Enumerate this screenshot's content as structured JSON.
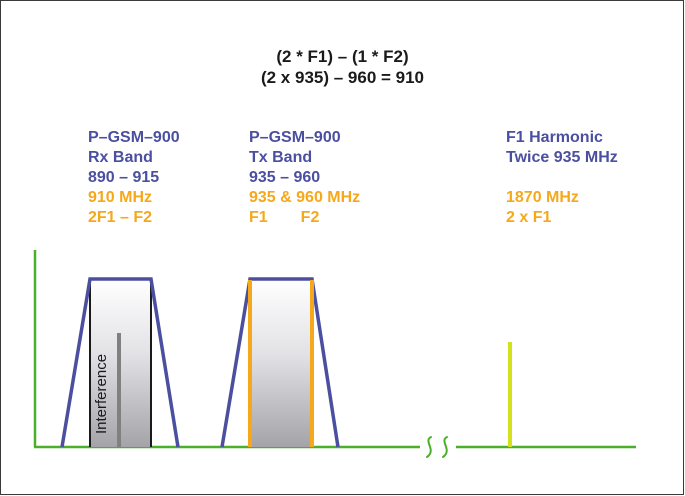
{
  "equation": {
    "line1": "(2 * F1) – (1 * F2)",
    "line2": "(2 x 935) – 960 = 910"
  },
  "columns": [
    {
      "id": "rx",
      "name": "P–GSM–900",
      "band_label": "Rx Band",
      "range": "890 – 915",
      "freq": "910 MHz",
      "expr": "2F1 – F2"
    },
    {
      "id": "tx",
      "name": "P–GSM–900",
      "band_label": "Tx Band",
      "range": "935 – 960",
      "freq": "935 & 960 MHz",
      "expr_f1": "F1",
      "expr_f2": "F2"
    },
    {
      "id": "harmonic",
      "name": "F1 Harmonic",
      "band_label": "Twice 935 MHz",
      "freq": "1870 MHz",
      "expr": "2 x F1"
    }
  ],
  "interference_label": "Interference",
  "colors": {
    "axis": "#4caf2a",
    "band_outline": "#4b4fa0",
    "carrier": "#f5a81c",
    "harmonic": "#d4e21c",
    "text_blue": "#4b4fa0",
    "text_orange": "#f5a81c"
  }
}
